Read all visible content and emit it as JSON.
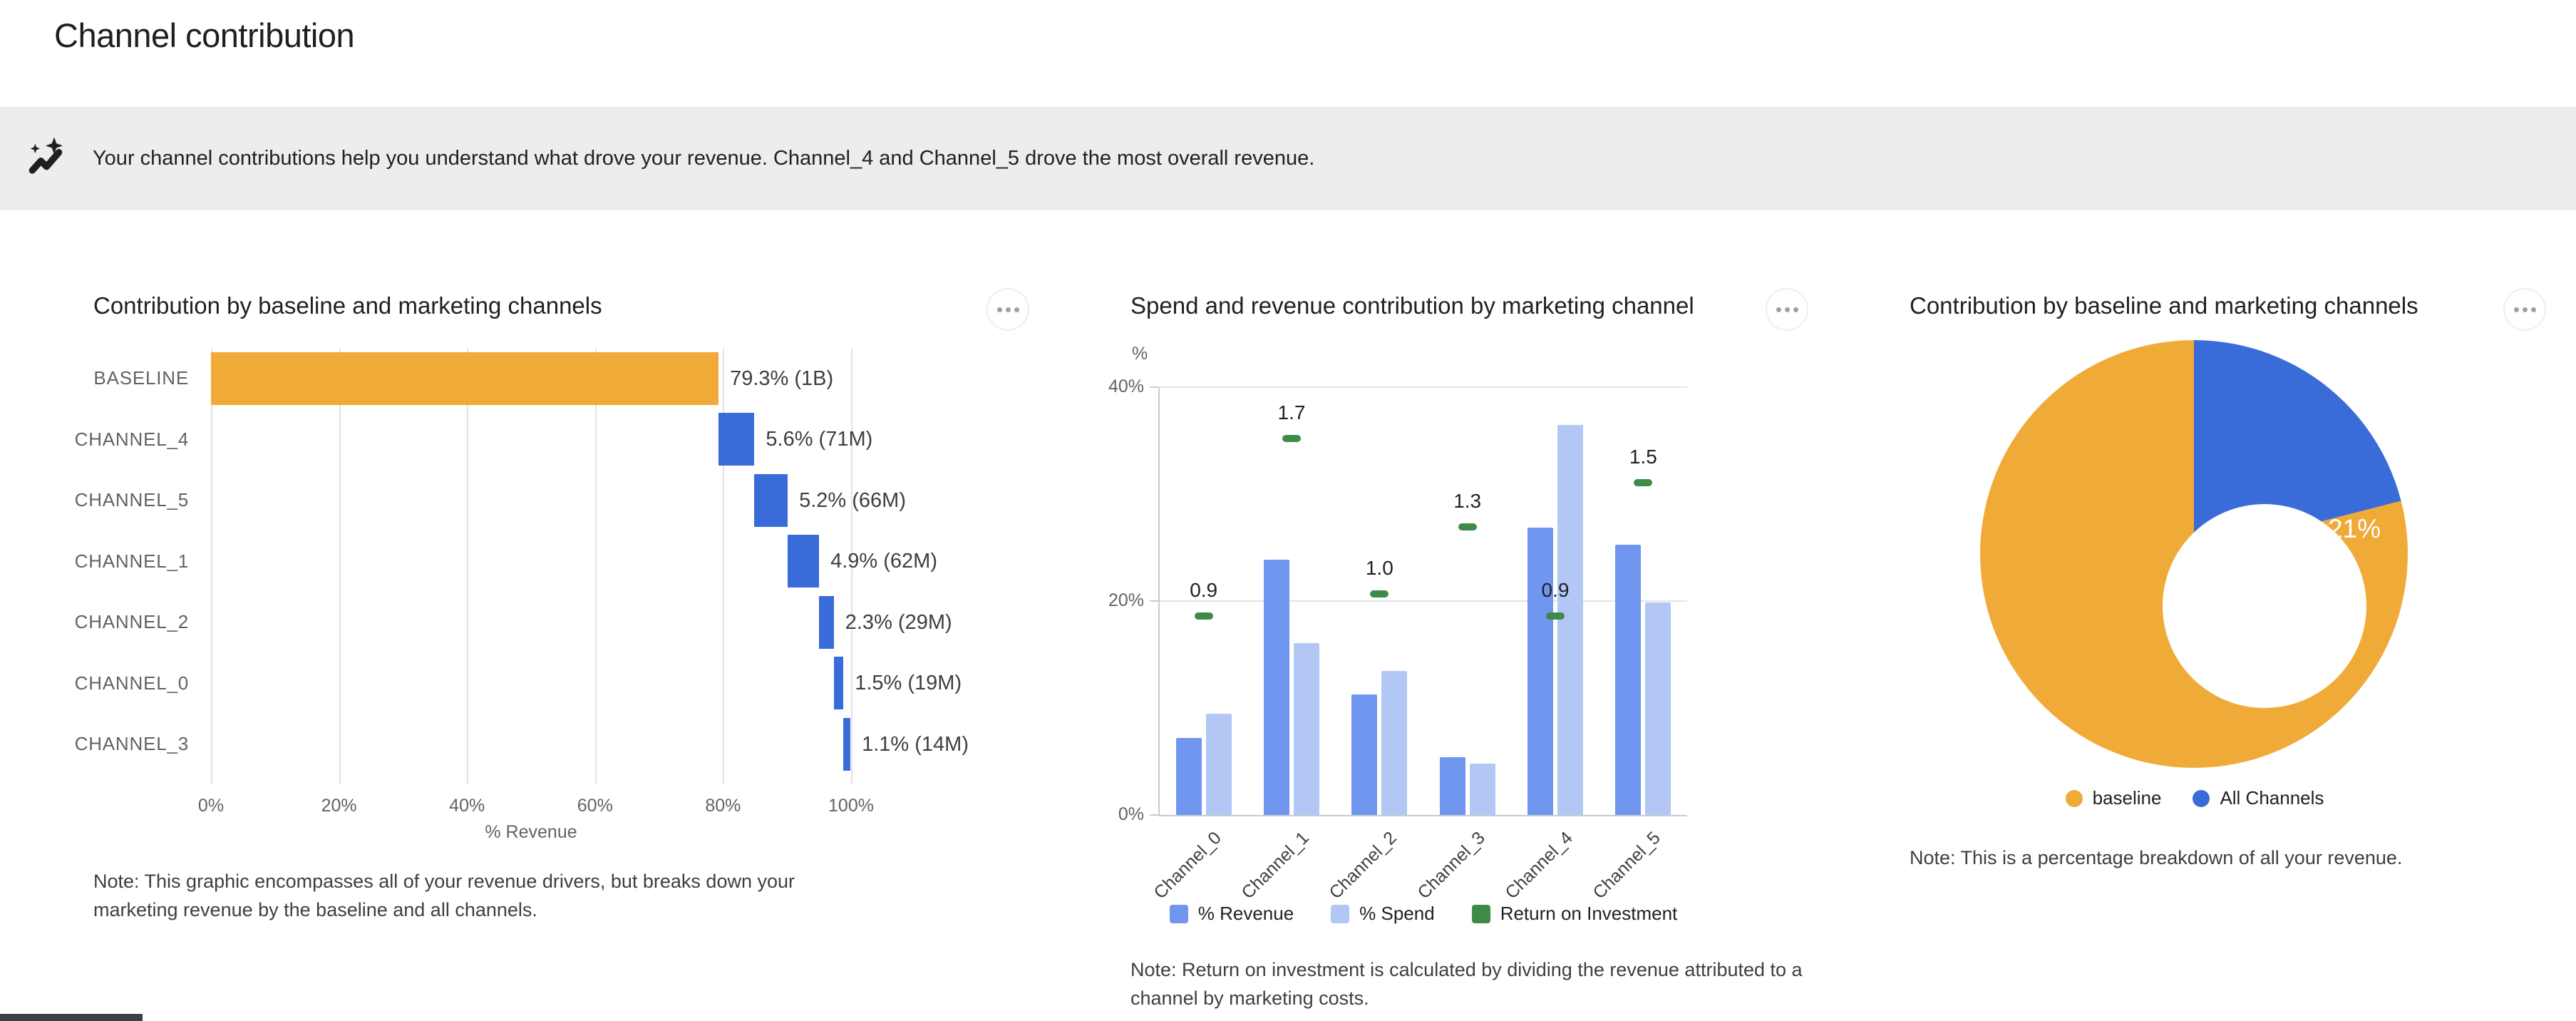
{
  "page": {
    "title": "Channel contribution"
  },
  "insight_bar": {
    "icon": "insights-icon",
    "text": "Your channel contributions help you understand what drove your revenue. Channel_4 and Channel_5 drove the most overall revenue."
  },
  "colors": {
    "baseline_orange": "#F0AA38",
    "channel_blue": "#3A6CD9",
    "revenue_blue": "#7096EF",
    "spend_blue": "#B2C7F4",
    "roi_green": "#3E8B48",
    "insight_bg": "#EDEDED"
  },
  "cards": [
    {
      "title": "Contribution by baseline and marketing channels",
      "menu_icon": "three-dot-menu",
      "note": "Note: This graphic encompasses all of your revenue drivers, but breaks down your marketing revenue by the baseline and all channels."
    },
    {
      "title": "Spend and revenue contribution by marketing channel",
      "menu_icon": "three-dot-menu",
      "note": "Note: Return on investment is calculated by dividing the revenue attributed to a channel by marketing costs."
    },
    {
      "title": "Contribution by baseline and marketing channels",
      "menu_icon": "three-dot-menu",
      "note": "Note: This is a percentage breakdown of all your revenue."
    }
  ],
  "chart_data": [
    {
      "type": "bar",
      "subtype": "horizontal-waterfall",
      "title": "Contribution by baseline and marketing channels",
      "categories": [
        "BASELINE",
        "CHANNEL_4",
        "CHANNEL_5",
        "CHANNEL_1",
        "CHANNEL_2",
        "CHANNEL_0",
        "CHANNEL_3"
      ],
      "values": [
        79.3,
        5.6,
        5.2,
        4.9,
        2.3,
        1.5,
        1.1
      ],
      "bar_labels": [
        "79.3% (1B)",
        "5.6% (71M)",
        "5.2% (66M)",
        "4.9% (62M)",
        "2.3% (29M)",
        "1.5% (19M)",
        "1.1% (14M)"
      ],
      "bar_colors": [
        "#F0AA38",
        "#3A6CD9",
        "#3A6CD9",
        "#3A6CD9",
        "#3A6CD9",
        "#3A6CD9",
        "#3A6CD9"
      ],
      "xlabel": "% Revenue",
      "x_ticks": [
        "0%",
        "20%",
        "40%",
        "60%",
        "80%",
        "100%"
      ],
      "xlim": [
        0,
        100
      ],
      "grid": true
    },
    {
      "type": "bar",
      "subtype": "grouped-with-roi-markers",
      "title": "Spend and revenue contribution by marketing channel",
      "categories": [
        "Channel_0",
        "Channel_1",
        "Channel_2",
        "Channel_3",
        "Channel_4",
        "Channel_5"
      ],
      "series": [
        {
          "name": "% Revenue",
          "color": "#7096EF",
          "values": [
            7.2,
            23.9,
            11.3,
            5.4,
            26.9,
            25.3
          ]
        },
        {
          "name": "% Spend",
          "color": "#B2C7F4",
          "values": [
            9.5,
            16.1,
            13.5,
            4.8,
            36.5,
            19.9
          ]
        }
      ],
      "markers": {
        "name": "Return on Investment",
        "color": "#3E8B48",
        "values": [
          0.9,
          1.7,
          1.0,
          1.3,
          0.9,
          1.5
        ],
        "pct_per_roi_unit": 20.7
      },
      "ylabel": "%",
      "y_ticks": [
        "0%",
        "20%",
        "40%"
      ],
      "ylim": [
        0,
        40
      ],
      "grid": true,
      "legend": [
        "% Revenue",
        "% Spend",
        "Return on Investment"
      ],
      "legend_position": "bottom"
    },
    {
      "type": "pie",
      "subtype": "donut",
      "title": "Contribution by baseline and marketing channels",
      "slices": [
        {
          "label": "All Channels",
          "value": 21,
          "display": "21%",
          "color": "#3A6CD9"
        },
        {
          "label": "baseline",
          "value": 79,
          "display": "79%",
          "color": "#F0AA38"
        }
      ],
      "start_angle": "top-clockwise",
      "legend": [
        {
          "label": "baseline",
          "color": "#F0AA38"
        },
        {
          "label": "All Channels",
          "color": "#3A6CD9"
        }
      ],
      "legend_position": "bottom"
    }
  ]
}
